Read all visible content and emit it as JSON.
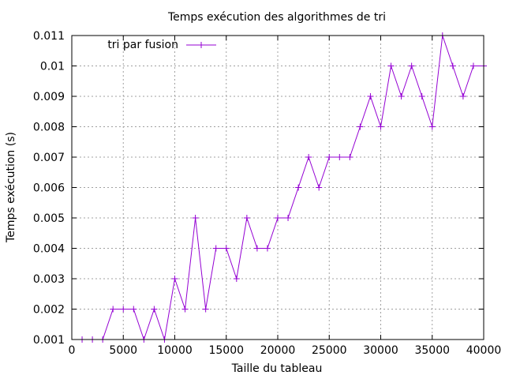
{
  "chart_data": {
    "type": "line",
    "title": "Temps exécution des algorithmes de tri",
    "xlabel": "Taille du tableau",
    "ylabel": "Temps exécution (s)",
    "xlim": [
      0,
      40000
    ],
    "ylim": [
      0.001,
      0.011
    ],
    "x_ticks": [
      0,
      5000,
      10000,
      15000,
      20000,
      25000,
      30000,
      35000,
      40000
    ],
    "x_tick_labels": [
      "0",
      "5000",
      "10000",
      "15000",
      "20000",
      "25000",
      "30000",
      "35000",
      "40000"
    ],
    "y_ticks": [
      0.001,
      0.002,
      0.003,
      0.004,
      0.005,
      0.006,
      0.007,
      0.008,
      0.009,
      0.01,
      0.011
    ],
    "y_tick_labels": [
      "0.001",
      "0.002",
      "0.003",
      "0.004",
      "0.005",
      "0.006",
      "0.007",
      "0.008",
      "0.009",
      "0.01",
      "0.011"
    ],
    "grid": true,
    "legend_position": "top-left",
    "marker": "plus",
    "series": [
      {
        "name": "tri par fusion",
        "color": "#9400d3",
        "x": [
          1000,
          2000,
          3000,
          4000,
          5000,
          6000,
          7000,
          8000,
          9000,
          10000,
          11000,
          12000,
          13000,
          14000,
          15000,
          16000,
          17000,
          18000,
          19000,
          20000,
          21000,
          22000,
          23000,
          24000,
          25000,
          26000,
          27000,
          28000,
          29000,
          30000,
          31000,
          32000,
          33000,
          34000,
          35000,
          36000,
          37000,
          38000,
          39000,
          40000
        ],
        "values": [
          0.001,
          0.001,
          0.001,
          0.002,
          0.002,
          0.002,
          0.001,
          0.002,
          0.001,
          0.003,
          0.002,
          0.005,
          0.002,
          0.004,
          0.004,
          0.003,
          0.005,
          0.004,
          0.004,
          0.005,
          0.005,
          0.006,
          0.007,
          0.006,
          0.007,
          0.007,
          0.007,
          0.008,
          0.009,
          0.008,
          0.01,
          0.009,
          0.01,
          0.009,
          0.008,
          0.011,
          0.01,
          0.009,
          0.01,
          0.01
        ]
      }
    ]
  }
}
